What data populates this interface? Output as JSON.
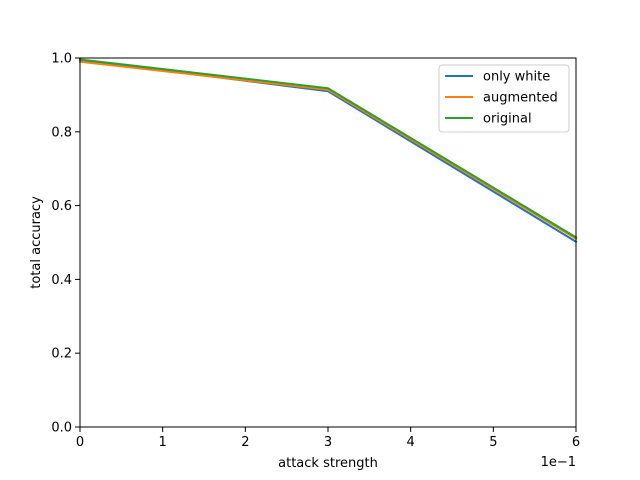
{
  "chart_data": {
    "type": "line",
    "title": "",
    "xlabel": "attack strength",
    "ylabel": "total accuracy",
    "x_offset_label": "1e−1",
    "x": [
      0,
      0.3,
      0.6
    ],
    "xlim": [
      0,
      0.6
    ],
    "ylim": [
      0.0,
      1.0
    ],
    "xticks": [
      0,
      0.1,
      0.2,
      0.3,
      0.4,
      0.5,
      0.6
    ],
    "xtick_labels": [
      "0",
      "1",
      "2",
      "3",
      "4",
      "5",
      "6"
    ],
    "yticks": [
      0.0,
      0.2,
      0.4,
      0.6,
      0.8,
      1.0
    ],
    "ytick_labels": [
      "0.0",
      "0.2",
      "0.4",
      "0.6",
      "0.8",
      "1.0"
    ],
    "grid": false,
    "legend_position": "top-right",
    "series": [
      {
        "name": "only white",
        "color": "#1f77b4",
        "values": [
          0.995,
          0.91,
          0.502
        ]
      },
      {
        "name": "augmented",
        "color": "#ff7f0e",
        "values": [
          0.99,
          0.914,
          0.51
        ]
      },
      {
        "name": "original",
        "color": "#2ca02c",
        "values": [
          0.996,
          0.918,
          0.514
        ]
      }
    ]
  }
}
